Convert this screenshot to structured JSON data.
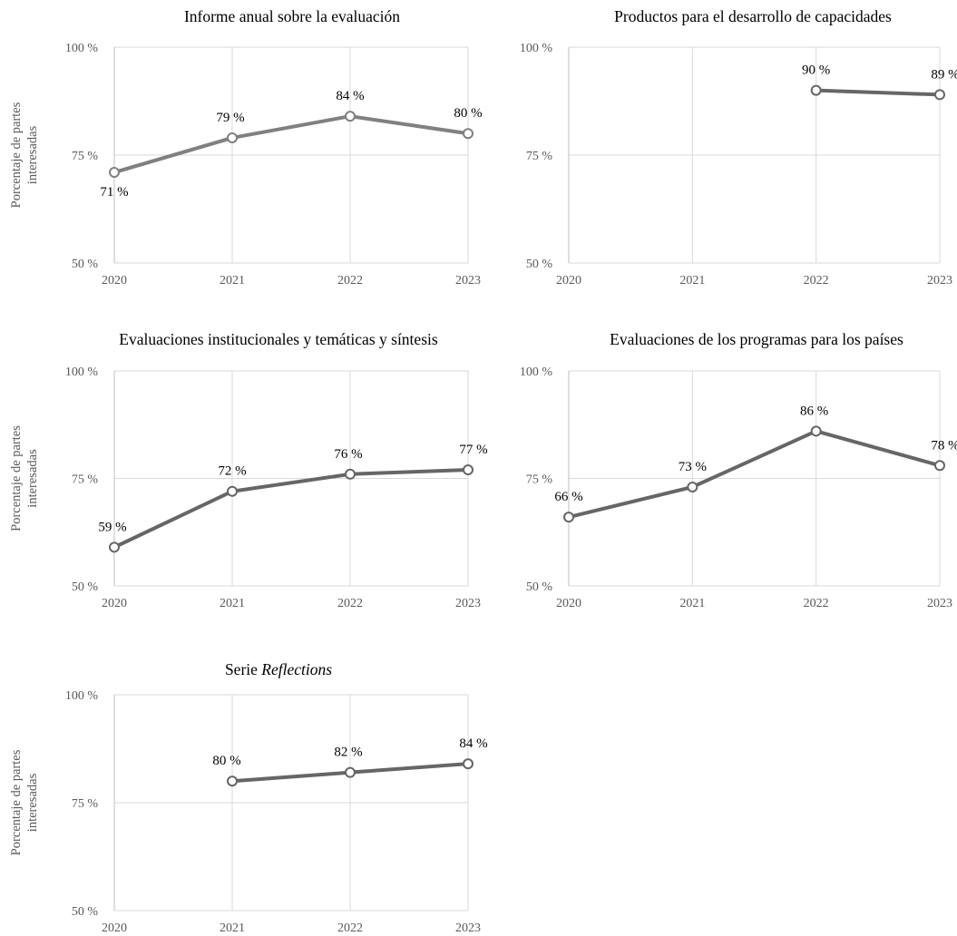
{
  "y_axis_label": [
    "Porcentaje de partes",
    "interesadas"
  ],
  "chart_data": [
    {
      "type": "line",
      "title": "Informe anual sobre la evaluación",
      "x": [
        "2020",
        "2021",
        "2022",
        "2023"
      ],
      "ylim": [
        50,
        100
      ],
      "yticks": [
        "50 %",
        "75 %",
        "100 %"
      ],
      "series": [
        {
          "values": [
            71,
            79,
            84,
            80
          ],
          "labels": [
            "71 %",
            "79 %",
            "84 %",
            "80 %"
          ]
        }
      ],
      "line_color": "#808080"
    },
    {
      "type": "line",
      "title": "Productos para el desarrollo de capacidades",
      "x": [
        "2020",
        "2021",
        "2022",
        "2023"
      ],
      "ylim": [
        50,
        100
      ],
      "yticks": [
        "50 %",
        "75 %",
        "100 %"
      ],
      "series": [
        {
          "values": [
            null,
            null,
            90,
            89
          ],
          "labels": [
            null,
            null,
            "90 %",
            "89 %"
          ]
        }
      ],
      "line_color": "#666666"
    },
    {
      "type": "line",
      "title": "Evaluaciones institucionales  y temáticas y síntesis",
      "x": [
        "2020",
        "2021",
        "2022",
        "2023"
      ],
      "ylim": [
        50,
        100
      ],
      "yticks": [
        "50 %",
        "75 %",
        "100 %"
      ],
      "series": [
        {
          "values": [
            59,
            72,
            76,
            77
          ],
          "labels": [
            "59 %",
            "72 %",
            "76 %",
            "77 %"
          ]
        }
      ],
      "line_color": "#666666"
    },
    {
      "type": "line",
      "title": "Evaluaciones de los programas para los países",
      "x": [
        "2020",
        "2021",
        "2022",
        "2023"
      ],
      "ylim": [
        50,
        100
      ],
      "yticks": [
        "50 %",
        "75 %",
        "100 %"
      ],
      "series": [
        {
          "values": [
            66,
            73,
            86,
            78
          ],
          "labels": [
            "66 %",
            "73 %",
            "86 %",
            "78 %"
          ]
        }
      ],
      "line_color": "#666666"
    },
    {
      "type": "line",
      "title": "Serie",
      "title_italic": "Reflections",
      "x": [
        "2020",
        "2021",
        "2022",
        "2023"
      ],
      "ylim": [
        50,
        100
      ],
      "yticks": [
        "50 %",
        "75 %",
        "100 %"
      ],
      "series": [
        {
          "values": [
            null,
            80,
            82,
            84
          ],
          "labels": [
            null,
            "80 %",
            "82 %",
            "84 %"
          ]
        }
      ],
      "line_color": "#666666"
    }
  ]
}
